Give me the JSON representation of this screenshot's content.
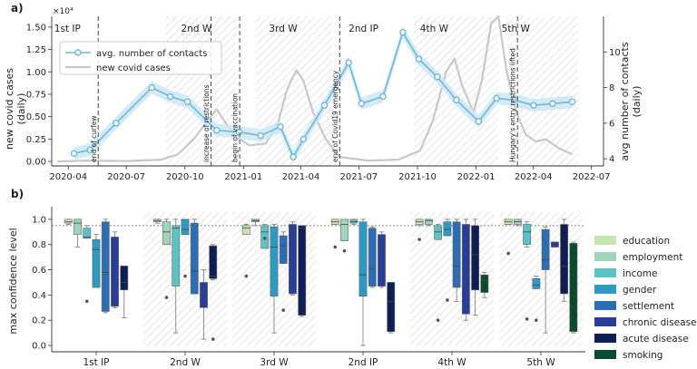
{
  "colors": {
    "contacts_line": "#6fb8d6",
    "contacts_band": "#cde8f3",
    "covid_line": "#c8c8c8",
    "hatch": "#d0d0d0",
    "vline": "#555555",
    "ref_line": "#888888"
  },
  "chart_data": [
    {
      "panel_label": "a)",
      "type": "line",
      "ylabel_left": "new covid cases\n(daily)",
      "ylabel_right": "avg number of contacts\n(daily)",
      "y_multiplier": "×10⁴",
      "x_ticks": [
        "2020-04",
        "2020-07",
        "2020-10",
        "2021-01",
        "2021-04",
        "2021-07",
        "2021-10",
        "2022-01",
        "2022-04",
        "2022-07"
      ],
      "ylim_left": [
        -0.05,
        1.62
      ],
      "yticks_left": [
        "0.00",
        "0.25",
        "0.50",
        "0.75",
        "1.00",
        "1.25",
        "1.50"
      ],
      "ylim_right": [
        3.6,
        12.0
      ],
      "yticks_right": [
        "4",
        "6",
        "8",
        "10"
      ],
      "legend": [
        "avg. number of contacts",
        "new covid cases"
      ],
      "legend_position": "top-left",
      "period_labels": [
        {
          "text": "1st IP",
          "date": "2020-03-10"
        },
        {
          "text": "2nd W",
          "date": "2020-09-25"
        },
        {
          "text": "3rd W",
          "date": "2021-02-10"
        },
        {
          "text": "2nd IP",
          "date": "2021-06-15"
        },
        {
          "text": "4th W",
          "date": "2021-10-05"
        },
        {
          "text": "5th W",
          "date": "2022-02-10"
        }
      ],
      "wave_periods": [
        {
          "start": "2020-09-01",
          "end": "2020-12-20"
        },
        {
          "start": "2021-01-20",
          "end": "2021-05-20"
        },
        {
          "start": "2021-09-25",
          "end": "2022-02-05"
        },
        {
          "start": "2022-02-18",
          "end": "2022-06-10"
        }
      ],
      "events": [
        {
          "date": "2020-05-18",
          "label": "end of curfew"
        },
        {
          "date": "2020-11-11",
          "label": "increase of restrictions"
        },
        {
          "date": "2020-12-26",
          "label": "begin of vaccination"
        },
        {
          "date": "2021-06-01",
          "label": "end of Covid19 emergency"
        },
        {
          "date": "2022-03-07",
          "label": "Hungary's entry restrictions lifted"
        }
      ],
      "series": [
        {
          "name": "avg. number of contacts",
          "axis": "right",
          "points": [
            {
              "x": "2020-04-10",
              "y": 4.3
            },
            {
              "x": "2020-05-05",
              "y": 4.5
            },
            {
              "x": "2020-06-15",
              "y": 6.0
            },
            {
              "x": "2020-08-10",
              "y": 8.0
            },
            {
              "x": "2020-09-08",
              "y": 7.5
            },
            {
              "x": "2020-10-05",
              "y": 7.2
            },
            {
              "x": "2020-11-20",
              "y": 5.6
            },
            {
              "x": "2020-12-25",
              "y": 5.5
            },
            {
              "x": "2021-01-28",
              "y": 5.3
            },
            {
              "x": "2021-02-28",
              "y": 5.8
            },
            {
              "x": "2021-03-20",
              "y": 4.1
            },
            {
              "x": "2021-04-05",
              "y": 5.1
            },
            {
              "x": "2021-05-08",
              "y": 7.0
            },
            {
              "x": "2021-06-15",
              "y": 9.4
            },
            {
              "x": "2021-07-05",
              "y": 7.1
            },
            {
              "x": "2021-08-08",
              "y": 7.5
            },
            {
              "x": "2021-09-08",
              "y": 11.1
            },
            {
              "x": "2021-10-03",
              "y": 9.6
            },
            {
              "x": "2021-11-01",
              "y": 8.6
            },
            {
              "x": "2021-12-01",
              "y": 7.3
            },
            {
              "x": "2022-01-05",
              "y": 6.1
            },
            {
              "x": "2022-02-02",
              "y": 7.4
            },
            {
              "x": "2022-03-02",
              "y": 7.3
            },
            {
              "x": "2022-04-01",
              "y": 7.0
            },
            {
              "x": "2022-05-01",
              "y": 7.1
            },
            {
              "x": "2022-06-01",
              "y": 7.2
            }
          ]
        },
        {
          "name": "new covid cases",
          "axis": "left",
          "points": [
            {
              "x": "2020-03-15",
              "y": 0.0
            },
            {
              "x": "2020-05-01",
              "y": 0.01
            },
            {
              "x": "2020-07-01",
              "y": 0.005
            },
            {
              "x": "2020-08-25",
              "y": 0.02
            },
            {
              "x": "2020-09-20",
              "y": 0.08
            },
            {
              "x": "2020-10-15",
              "y": 0.25
            },
            {
              "x": "2020-11-05",
              "y": 0.45
            },
            {
              "x": "2020-11-20",
              "y": 0.58
            },
            {
              "x": "2020-12-05",
              "y": 0.42
            },
            {
              "x": "2020-12-20",
              "y": 0.28
            },
            {
              "x": "2021-01-10",
              "y": 0.18
            },
            {
              "x": "2021-02-05",
              "y": 0.2
            },
            {
              "x": "2021-02-25",
              "y": 0.45
            },
            {
              "x": "2021-03-10",
              "y": 0.8
            },
            {
              "x": "2021-03-25",
              "y": 1.02
            },
            {
              "x": "2021-04-05",
              "y": 0.9
            },
            {
              "x": "2021-04-20",
              "y": 0.55
            },
            {
              "x": "2021-05-10",
              "y": 0.25
            },
            {
              "x": "2021-06-01",
              "y": 0.05
            },
            {
              "x": "2021-07-15",
              "y": 0.01
            },
            {
              "x": "2021-09-01",
              "y": 0.02
            },
            {
              "x": "2021-10-05",
              "y": 0.12
            },
            {
              "x": "2021-10-25",
              "y": 0.45
            },
            {
              "x": "2021-11-15",
              "y": 1.0
            },
            {
              "x": "2021-11-28",
              "y": 1.15
            },
            {
              "x": "2021-12-10",
              "y": 0.85
            },
            {
              "x": "2021-12-28",
              "y": 0.55
            },
            {
              "x": "2022-01-10",
              "y": 0.9
            },
            {
              "x": "2022-01-25",
              "y": 1.55
            },
            {
              "x": "2022-02-05",
              "y": 1.62
            },
            {
              "x": "2022-02-18",
              "y": 1.0
            },
            {
              "x": "2022-03-05",
              "y": 0.55
            },
            {
              "x": "2022-03-20",
              "y": 0.3
            },
            {
              "x": "2022-04-05",
              "y": 0.22
            },
            {
              "x": "2022-04-20",
              "y": 0.25
            },
            {
              "x": "2022-05-10",
              "y": 0.15
            },
            {
              "x": "2022-06-01",
              "y": 0.08
            }
          ]
        }
      ]
    },
    {
      "panel_label": "b)",
      "type": "box",
      "ylabel": "max confidence level",
      "ylim": [
        -0.05,
        1.1
      ],
      "yticks": [
        "0.0",
        "0.2",
        "0.4",
        "0.6",
        "0.8",
        "1.0"
      ],
      "ref_line": 0.95,
      "categories": [
        "1st IP",
        "2nd W",
        "3rd W",
        "2nd IP",
        "4th W",
        "5th W"
      ],
      "hatched_categories": [
        "2nd W",
        "3rd W",
        "4th W",
        "5th W"
      ],
      "legend_position": "right",
      "series": [
        {
          "name": "education",
          "color": "#c6e5b0"
        },
        {
          "name": "employment",
          "color": "#9fd5bc"
        },
        {
          "name": "income",
          "color": "#5cc2c4"
        },
        {
          "name": "gender",
          "color": "#2e9ac4"
        },
        {
          "name": "settlement",
          "color": "#2d6db2"
        },
        {
          "name": "chronic disease",
          "color": "#283e98"
        },
        {
          "name": "acute disease",
          "color": "#0f1f55"
        },
        {
          "name": "smoking",
          "color": "#0a4a2e"
        }
      ],
      "boxes": [
        [
          {
            "min": 0.96,
            "q1": 0.97,
            "med": 0.98,
            "q3": 1.0,
            "max": 1.0,
            "out": []
          },
          {
            "min": 0.78,
            "q1": 0.88,
            "med": 0.97,
            "q3": 1.0,
            "max": 1.0,
            "out": []
          },
          {
            "min": 0.85,
            "q1": 0.85,
            "med": 0.86,
            "q3": 0.93,
            "max": 0.95,
            "out": [
              0.35
            ]
          },
          {
            "min": 0.46,
            "q1": 0.46,
            "med": 0.76,
            "q3": 0.84,
            "max": 0.88,
            "out": []
          },
          {
            "min": 0.26,
            "q1": 0.27,
            "med": 0.58,
            "q3": 0.98,
            "max": 1.0,
            "out": []
          },
          {
            "min": 0.3,
            "q1": 0.31,
            "med": 0.48,
            "q3": 0.86,
            "max": 0.9,
            "out": []
          },
          {
            "min": 0.22,
            "q1": 0.44,
            "med": 0.5,
            "q3": 0.63,
            "max": 0.63,
            "out": []
          }
        ],
        [
          {
            "min": 0.97,
            "q1": 0.98,
            "med": 0.99,
            "q3": 1.0,
            "max": 1.0,
            "out": []
          },
          {
            "min": 0.8,
            "q1": 0.8,
            "med": 0.9,
            "q3": 0.98,
            "max": 1.0,
            "out": [
              0.38
            ]
          },
          {
            "min": 0.1,
            "q1": 0.47,
            "med": 0.93,
            "q3": 0.95,
            "max": 1.0,
            "out": []
          },
          {
            "min": 0.88,
            "q1": 0.88,
            "med": 0.92,
            "q3": 1.0,
            "max": 1.0,
            "out": [
              0.55
            ]
          },
          {
            "min": 0.41,
            "q1": 0.41,
            "med": 0.59,
            "q3": 0.97,
            "max": 1.0,
            "out": []
          },
          {
            "min": 0.05,
            "q1": 0.3,
            "med": 0.4,
            "q3": 0.5,
            "max": 0.6,
            "out": []
          },
          {
            "min": 0.52,
            "q1": 0.53,
            "med": 0.55,
            "q3": 0.79,
            "max": 0.8,
            "out": [
              0.05
            ]
          }
        ],
        [
          {
            "min": 0.88,
            "q1": 0.88,
            "med": 0.93,
            "q3": 0.95,
            "max": 0.96,
            "out": [
              0.55
            ]
          },
          {
            "min": 0.95,
            "q1": 0.98,
            "med": 0.99,
            "q3": 1.0,
            "max": 1.0,
            "out": []
          },
          {
            "min": 0.77,
            "q1": 0.77,
            "med": 0.9,
            "q3": 0.95,
            "max": 0.96,
            "out": [
              0.85
            ]
          },
          {
            "min": 0.1,
            "q1": 0.39,
            "med": 0.78,
            "q3": 0.94,
            "max": 0.96,
            "out": []
          },
          {
            "min": 0.65,
            "q1": 0.65,
            "med": 0.79,
            "q3": 0.87,
            "max": 0.9,
            "out": [
              0.28
            ]
          },
          {
            "min": 0.4,
            "q1": 0.41,
            "med": 0.9,
            "q3": 0.96,
            "max": 0.98,
            "out": []
          },
          {
            "min": 0.23,
            "q1": 0.24,
            "med": 0.93,
            "q3": 0.95,
            "max": 0.95,
            "out": []
          }
        ],
        [
          {
            "min": 0.96,
            "q1": 0.96,
            "med": 0.98,
            "q3": 1.0,
            "max": 1.0,
            "out": [
              0.78
            ]
          },
          {
            "min": 0.83,
            "q1": 0.83,
            "med": 0.96,
            "q3": 1.0,
            "max": 1.0,
            "out": [
              0.75
            ]
          },
          {
            "min": 0.96,
            "q1": 0.97,
            "med": 0.98,
            "q3": 1.0,
            "max": 1.0,
            "out": []
          },
          {
            "min": 0.0,
            "q1": 0.39,
            "med": 0.56,
            "q3": 0.98,
            "max": 1.0,
            "out": []
          },
          {
            "min": 0.46,
            "q1": 0.47,
            "med": 0.61,
            "q3": 0.93,
            "max": 0.94,
            "out": []
          },
          {
            "min": 0.46,
            "q1": 0.47,
            "med": 0.79,
            "q3": 0.88,
            "max": 0.9,
            "out": []
          },
          {
            "min": 0.1,
            "q1": 0.11,
            "med": 0.35,
            "q3": 0.5,
            "max": 0.5,
            "out": []
          }
        ],
        [
          {
            "min": 0.95,
            "q1": 0.96,
            "med": 0.98,
            "q3": 1.0,
            "max": 1.0,
            "out": [
              0.84
            ]
          },
          {
            "min": 0.95,
            "q1": 0.96,
            "med": 0.99,
            "q3": 1.0,
            "max": 1.0,
            "out": []
          },
          {
            "min": 0.84,
            "q1": 0.84,
            "med": 0.9,
            "q3": 0.95,
            "max": 0.96,
            "out": [
              0.2
            ]
          },
          {
            "min": 0.87,
            "q1": 0.87,
            "med": 0.92,
            "q3": 0.98,
            "max": 1.0,
            "out": [
              0.36
            ]
          },
          {
            "min": 0.35,
            "q1": 0.46,
            "med": 0.63,
            "q3": 0.98,
            "max": 1.0,
            "out": []
          },
          {
            "min": 0.2,
            "q1": 0.25,
            "med": 0.47,
            "q3": 0.96,
            "max": 1.0,
            "out": []
          },
          {
            "min": 0.24,
            "q1": 0.44,
            "med": 0.72,
            "q3": 0.95,
            "max": 1.0,
            "out": []
          },
          {
            "min": 0.38,
            "q1": 0.42,
            "med": 0.52,
            "q3": 0.56,
            "max": 0.58,
            "out": []
          }
        ],
        [
          {
            "min": 0.96,
            "q1": 0.96,
            "med": 0.98,
            "q3": 1.0,
            "max": 1.0,
            "out": [
              0.73
            ]
          },
          {
            "min": 0.95,
            "q1": 0.96,
            "med": 0.98,
            "q3": 1.0,
            "max": 1.0,
            "out": []
          },
          {
            "min": 0.78,
            "q1": 0.8,
            "med": 0.9,
            "q3": 0.96,
            "max": 0.98,
            "out": [
              0.21
            ]
          },
          {
            "min": 0.45,
            "q1": 0.45,
            "med": 0.48,
            "q3": 0.53,
            "max": 0.55,
            "out": [
              0.2
            ]
          },
          {
            "min": 0.1,
            "q1": 0.6,
            "med": 0.68,
            "q3": 0.92,
            "max": 0.94,
            "out": []
          },
          {
            "min": 0.78,
            "q1": 0.78,
            "med": 0.8,
            "q3": 0.82,
            "max": 0.82,
            "out": []
          },
          {
            "min": 0.35,
            "q1": 0.41,
            "med": 0.63,
            "q3": 0.96,
            "max": 1.0,
            "out": []
          },
          {
            "min": 0.1,
            "q1": 0.11,
            "med": 0.3,
            "q3": 0.81,
            "max": 0.82,
            "out": []
          }
        ]
      ]
    }
  ]
}
